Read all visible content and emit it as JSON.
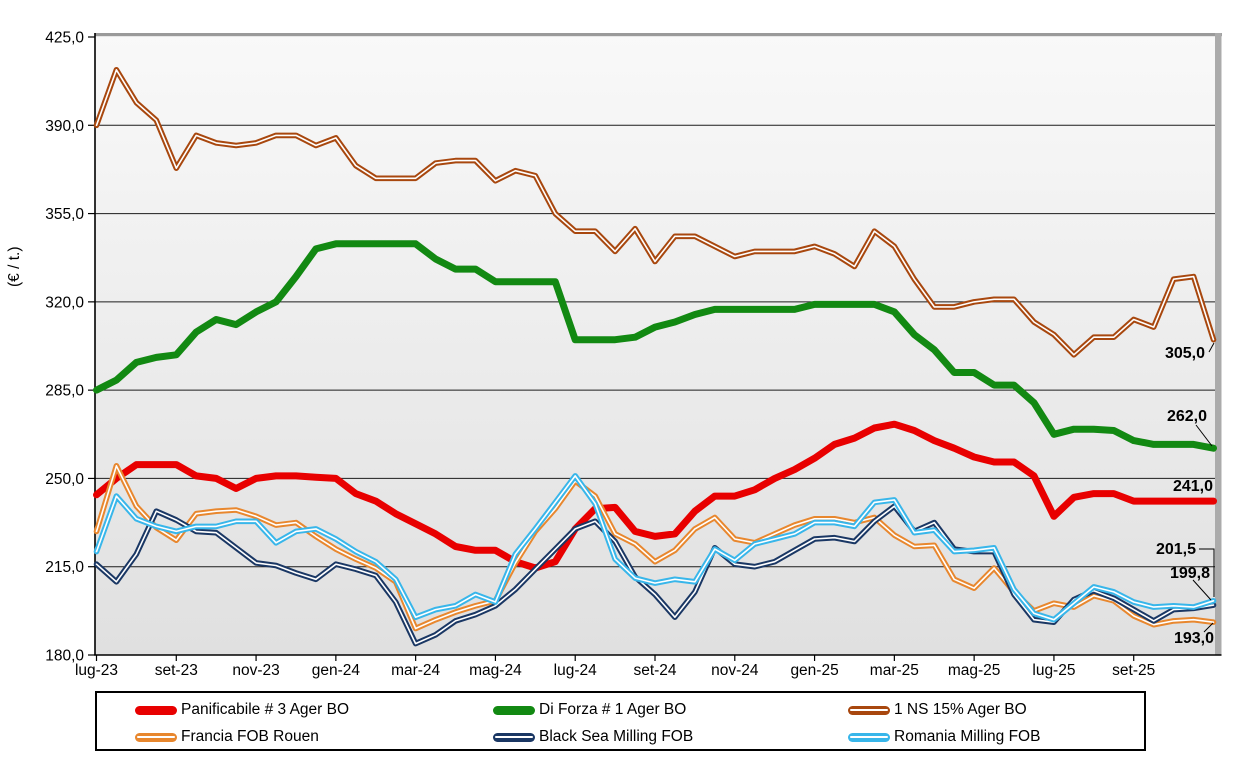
{
  "y_axis": {
    "label": "(€ / t.)",
    "ticks": [
      "425,0",
      "390,0",
      "355,0",
      "320,0",
      "285,0",
      "250,0",
      "215,0",
      "180,0"
    ]
  },
  "x_axis": {
    "ticks": [
      "lug-23",
      "set-23",
      "nov-23",
      "gen-24",
      "mar-24",
      "mag-24",
      "lug-24",
      "set-24",
      "nov-24",
      "gen-25",
      "mar-25",
      "mag-25",
      "lug-25",
      "set-25"
    ]
  },
  "end_labels": [
    {
      "text": "305,0",
      "series": "1 NS 15% Ager BO"
    },
    {
      "text": "262,0",
      "series": "Di Forza # 1 Ager BO"
    },
    {
      "text": "241,0",
      "series": "Panificabile # 3 Ager BO"
    },
    {
      "text": "201,5",
      "series": "Romania Milling FOB"
    },
    {
      "text": "199,8",
      "series": "Black Sea Milling FOB"
    },
    {
      "text": "193,0",
      "series": "Francia FOB Rouen"
    }
  ],
  "chart_data": {
    "type": "line",
    "title": "",
    "ylabel": "(€ / t.)",
    "ylim": [
      180,
      425
    ],
    "y_tick_step": 35,
    "grid": "horizontal",
    "legend_position": "bottom",
    "x_range_months": [
      0,
      28
    ],
    "x_unit": "half-month samples from lug-23 (weekly price quotes)",
    "x_tick_labels": [
      "lug-23",
      "set-23",
      "nov-23",
      "gen-24",
      "mar-24",
      "mag-24",
      "lug-24",
      "set-24",
      "nov-24",
      "gen-25",
      "mar-25",
      "mag-25",
      "lug-25",
      "set-25"
    ],
    "x_tick_months": [
      0,
      2,
      4,
      6,
      8,
      10,
      12,
      14,
      16,
      18,
      20,
      22,
      24,
      26
    ],
    "series": [
      {
        "name": "Panificabile # 3 Ager BO",
        "color": "#e80000",
        "line_style": "solid",
        "end_label": "241,0",
        "values": [
          243.5,
          250,
          255.5,
          255.5,
          255.5,
          251,
          250,
          246,
          250,
          251,
          251,
          250.5,
          250,
          244,
          241,
          236,
          232,
          228,
          223,
          221.5,
          221.5,
          217,
          214.5,
          217,
          230,
          238,
          238.5,
          229,
          227,
          228,
          237,
          243,
          243,
          245.5,
          250,
          253.5,
          258,
          263.5,
          266,
          270,
          271.5,
          269,
          265,
          262,
          258.5,
          256.5,
          256.5,
          251,
          235,
          242.5,
          244,
          244,
          241,
          241,
          241,
          241,
          241
        ]
      },
      {
        "name": "Di Forza # 1 Ager BO",
        "color": "#128912",
        "line_style": "solid",
        "end_label": "262,0",
        "values": [
          285,
          289,
          296,
          298,
          299,
          308,
          313,
          311,
          316,
          320,
          330,
          341,
          343,
          343,
          343,
          343,
          343,
          337,
          333,
          333,
          328,
          328,
          328,
          328,
          305,
          305,
          305,
          306,
          310,
          312,
          315,
          317,
          317,
          317,
          317,
          317,
          319,
          319,
          319,
          319,
          316,
          307,
          301,
          292,
          292,
          287,
          287,
          280,
          267.5,
          269.5,
          269.5,
          269,
          265,
          263.5,
          263.5,
          263.5,
          262
        ]
      },
      {
        "name": "1 NS 15% Ager BO",
        "color": "#a8470e",
        "line_style": "double-white-core",
        "end_label": "305,0",
        "values": [
          390,
          412,
          399,
          392,
          373,
          386,
          383,
          382,
          383,
          386,
          386,
          382,
          385,
          374,
          369,
          369,
          369,
          375,
          376,
          376,
          368,
          372,
          370,
          355,
          348,
          348,
          340,
          349,
          336,
          346,
          346,
          342,
          338,
          340,
          340,
          340,
          342,
          339,
          334,
          348,
          342,
          329,
          318,
          318,
          320,
          321,
          321,
          312,
          307,
          299,
          306,
          306,
          313,
          310,
          329,
          330,
          305
        ]
      },
      {
        "name": "Francia FOB Rouen",
        "color": "#e8872e",
        "line_style": "double-white-core",
        "end_label": "193,0",
        "values": [
          229,
          255,
          239,
          230.5,
          225.5,
          236,
          237,
          237.5,
          235,
          231.5,
          232.5,
          227,
          222,
          218,
          214.5,
          209,
          190.5,
          194,
          197,
          199.5,
          201.5,
          216.5,
          229,
          238,
          249,
          243,
          228,
          224,
          217,
          221.5,
          230,
          234.5,
          226,
          224.5,
          228,
          231.5,
          234,
          234,
          232.5,
          234.5,
          227.5,
          223,
          223.5,
          210,
          206.5,
          214.5,
          205,
          197.5,
          200.5,
          199,
          203.5,
          201.5,
          195.5,
          192,
          193.5,
          194,
          193
        ]
      },
      {
        "name": "Black Sea Milling FOB",
        "color": "#1a3764",
        "line_style": "double-white-core",
        "end_label": "199,8",
        "values": [
          216,
          209,
          220,
          237,
          233.5,
          229,
          228.5,
          222.5,
          216.5,
          215.5,
          212.5,
          210,
          216,
          214,
          211.5,
          201,
          184.5,
          188,
          193.5,
          196,
          199.5,
          206,
          214,
          222,
          230,
          233,
          225,
          211,
          204,
          195,
          205,
          222.5,
          216,
          215,
          217,
          221.5,
          226,
          226.5,
          225,
          233,
          239,
          229,
          232.5,
          222,
          221,
          221,
          204,
          194,
          193,
          202,
          205.5,
          202.5,
          198,
          193.5,
          198,
          198.5,
          199.8
        ]
      },
      {
        "name": "Romania Milling FOB",
        "color": "#38b6ea",
        "line_style": "double-white-core",
        "end_label": "201,5",
        "values": [
          221,
          243,
          234,
          231,
          229,
          231,
          231,
          233,
          233,
          224.5,
          229,
          230,
          226,
          221,
          217,
          210,
          195,
          198,
          199.5,
          204,
          201,
          220,
          230,
          240.5,
          251,
          240,
          218,
          210.5,
          208.5,
          210,
          209,
          222,
          217.5,
          224,
          226,
          228,
          232.5,
          232.5,
          231,
          240.5,
          241.5,
          228.5,
          229.5,
          221,
          221.5,
          222.5,
          206,
          196.5,
          194,
          200.5,
          207,
          205,
          201,
          199,
          199.5,
          199,
          201.5
        ]
      }
    ]
  },
  "legend": {
    "items": [
      "Panificabile # 3 Ager BO",
      "Di Forza # 1 Ager BO",
      "1 NS 15% Ager BO",
      "Francia FOB Rouen",
      "Black Sea Milling FOB",
      "Romania Milling FOB"
    ]
  }
}
